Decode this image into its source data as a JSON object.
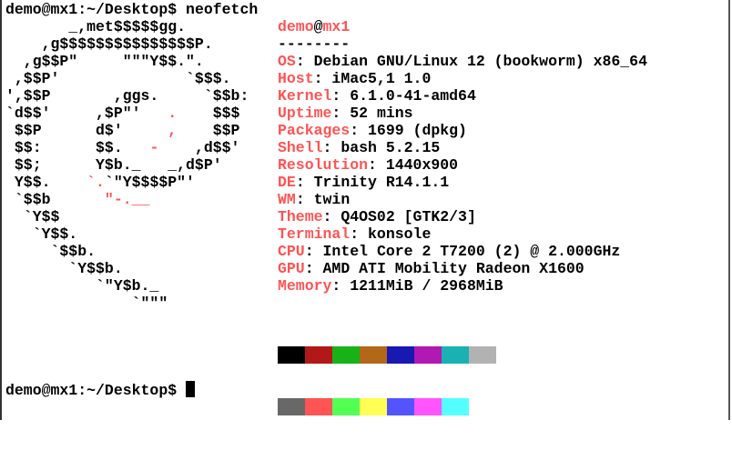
{
  "command_line": {
    "prompt": "demo@mx1:~/Desktop$ ",
    "command": "neofetch"
  },
  "logo": [
    [
      [
        "       _,met$$$$$gg.",
        false
      ]
    ],
    [
      [
        "    ,g$$$$$$$$$$$$$$$P.",
        false
      ]
    ],
    [
      [
        "  ,g$$P\"     \"\"\"Y$$.\".",
        false
      ]
    ],
    [
      [
        " ,$$P'              `$$$.",
        false
      ]
    ],
    [
      [
        "',$$P       ,ggs.     `$$b:",
        false
      ]
    ],
    [
      [
        "`d$$'     ,$P\"'   ",
        false
      ],
      [
        ".",
        true
      ],
      [
        "    $$$",
        false
      ]
    ],
    [
      [
        " $$P      d$'     ",
        false
      ],
      [
        ",",
        true
      ],
      [
        "    $$P",
        false
      ]
    ],
    [
      [
        " $$:      $$.   ",
        false
      ],
      [
        "-",
        true
      ],
      [
        "    ,d$$'",
        false
      ]
    ],
    [
      [
        " $$;      Y$b._   _,d$P'",
        false
      ]
    ],
    [
      [
        " Y$$.    ",
        false
      ],
      [
        "`.",
        true
      ],
      [
        "`\"Y$$$$P\"'",
        false
      ]
    ],
    [
      [
        " `$$b      ",
        false
      ],
      [
        "\"-.__",
        true
      ]
    ],
    [
      [
        "  `Y$$",
        false
      ]
    ],
    [
      [
        "   `Y$$.",
        false
      ]
    ],
    [
      [
        "     `$$b.",
        false
      ]
    ],
    [
      [
        "       `Y$$b.",
        false
      ]
    ],
    [
      [
        "          `\"Y$b._",
        false
      ]
    ],
    [
      [
        "              `\"\"\"",
        false
      ]
    ]
  ],
  "info": {
    "user": "demo",
    "at": "@",
    "host": "mx1",
    "separator": "--------",
    "rows": [
      {
        "label": "OS",
        "value": "Debian GNU/Linux 12 (bookworm) x86_64"
      },
      {
        "label": "Host",
        "value": "iMac5,1 1.0"
      },
      {
        "label": "Kernel",
        "value": "6.1.0-41-amd64"
      },
      {
        "label": "Uptime",
        "value": "52 mins"
      },
      {
        "label": "Packages",
        "value": "1699 (dpkg)"
      },
      {
        "label": "Shell",
        "value": "bash 5.2.15"
      },
      {
        "label": "Resolution",
        "value": "1440x900"
      },
      {
        "label": "DE",
        "value": "Trinity R14.1.1"
      },
      {
        "label": "WM",
        "value": "twin"
      },
      {
        "label": "Theme",
        "value": "Q4OS02 [GTK2/3]"
      },
      {
        "label": "Terminal",
        "value": "konsole"
      },
      {
        "label": "CPU",
        "value": "Intel Core 2 T7200 (2) @ 2.000GHz"
      },
      {
        "label": "GPU",
        "value": "AMD ATI Mobility Radeon X1600"
      },
      {
        "label": "Memory",
        "value": "1211MiB / 2968MiB"
      }
    ]
  },
  "palette": {
    "normal": [
      "#000000",
      "#b21818",
      "#18b218",
      "#b26818",
      "#1818b2",
      "#b218b2",
      "#18b2b2",
      "#b2b2b2"
    ],
    "bright": [
      "#686868",
      "#ff5454",
      "#54ff54",
      "#ffff54",
      "#5454ff",
      "#ff54ff",
      "#54ffff"
    ]
  },
  "accent_color": "#ff5454",
  "final_prompt": "demo@mx1:~/Desktop$ "
}
